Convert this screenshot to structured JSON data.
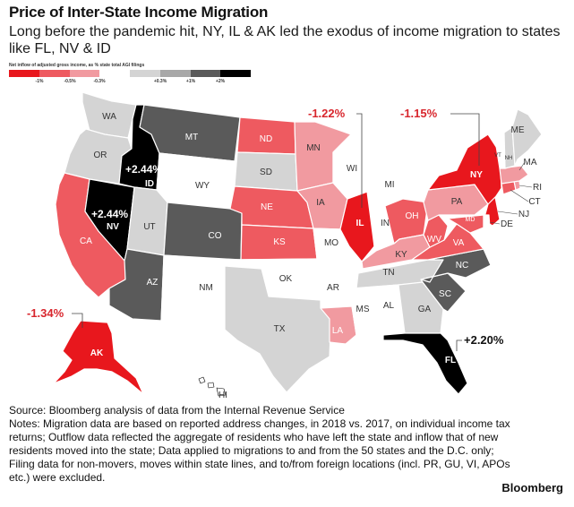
{
  "title": "Price of Inter-State Income Migration",
  "subtitle": "Long before the pandemic hit, NY, IL & AK led the exodus of income migration to states like FL, NV & ID",
  "legend": {
    "title": "Net inflow of adjusted gross income, as % state total AGI filings",
    "colors": [
      "#e8171d",
      "#ee5a60",
      "#f19aa0",
      "#ffffff",
      "#d4d4d4",
      "#a8a8a8",
      "#5a5a5a",
      "#000000"
    ],
    "ticks": [
      "-1%",
      "-0.5%",
      "-0.3%",
      "+0.3%",
      "+1%",
      "+2%"
    ]
  },
  "states": {
    "WA": "#d4d4d4",
    "OR": "#d4d4d4",
    "CA": "#ee5a60",
    "NV": "#000000",
    "ID": "#000000",
    "MT": "#5a5a5a",
    "WY": "#ffffff",
    "UT": "#d4d4d4",
    "AZ": "#5a5a5a",
    "CO": "#5a5a5a",
    "NM": "#ffffff",
    "ND": "#ee5a60",
    "SD": "#d4d4d4",
    "NE": "#ee5a60",
    "KS": "#ee5a60",
    "OK": "#ffffff",
    "TX": "#d4d4d4",
    "MN": "#f19aa0",
    "IA": "#f19aa0",
    "MO": "#ffffff",
    "AR": "#ffffff",
    "LA": "#f19aa0",
    "WI": "#ffffff",
    "IL": "#e8171d",
    "MI": "#ffffff",
    "IN": "#ffffff",
    "OH": "#ee5a60",
    "KY": "#f19aa0",
    "TN": "#d4d4d4",
    "MS": "#ffffff",
    "AL": "#ffffff",
    "GA": "#d4d4d4",
    "FL": "#000000",
    "SC": "#5a5a5a",
    "NC": "#5a5a5a",
    "VA": "#ee5a60",
    "WV": "#ee5a60",
    "PA": "#f19aa0",
    "NY": "#e8171d",
    "NJ": "#e8171d",
    "MD": "#ee5a60",
    "DE": "#ffffff",
    "CT": "#ee5a60",
    "RI": "#f19aa0",
    "MA": "#f19aa0",
    "VT": "#ffffff",
    "NH": "#d4d4d4",
    "ME": "#d4d4d4",
    "AK": "#e8171d",
    "HI": "#ffffff"
  },
  "callouts": {
    "ny": "-1.15%",
    "il": "-1.22%",
    "ak": "-1.34%",
    "id": "+2.44%",
    "nv": "+2.44%",
    "fl": "+2.20%"
  },
  "labels": {
    "WA": "WA",
    "OR": "OR",
    "CA": "CA",
    "NV": "NV",
    "ID": "ID",
    "MT": "MT",
    "WY": "WY",
    "UT": "UT",
    "AZ": "AZ",
    "CO": "CO",
    "NM": "NM",
    "ND": "ND",
    "SD": "SD",
    "NE": "NE",
    "KS": "KS",
    "OK": "OK",
    "TX": "TX",
    "MN": "MN",
    "IA": "IA",
    "MO": "MO",
    "AR": "AR",
    "LA": "LA",
    "WI": "WI",
    "IL": "IL",
    "MI": "MI",
    "IN": "IN",
    "OH": "OH",
    "KY": "KY",
    "TN": "TN",
    "MS": "MS",
    "AL": "AL",
    "GA": "GA",
    "FL": "FL",
    "SC": "SC",
    "NC": "NC",
    "VA": "VA",
    "WV": "WV",
    "PA": "PA",
    "NY": "NY",
    "NJ": "NJ",
    "MD": "MD",
    "DE": "DE",
    "CT": "CT",
    "RI": "RI",
    "MA": "MA",
    "VT": "VT",
    "NH": "NH",
    "ME": "ME",
    "AK": "AK",
    "HI": "HI"
  },
  "notes": {
    "source": "Source: Bloomberg analysis of data from the Internal Revenue Service",
    "text": "Notes: Migration data are based on reported address changes, in 2018 vs. 2017, on individual income tax returns; Outflow data reflected the aggregate of residents who have left the state and inflow that of new residents moved into the state; Data applied to migrations to and from the 50 states and the D.C. only; Filing data for non-movers, moves within state lines, and to/from foreign locations (incl. PR, GU, VI, APOs etc.) were excluded."
  },
  "brand": "Bloomberg"
}
